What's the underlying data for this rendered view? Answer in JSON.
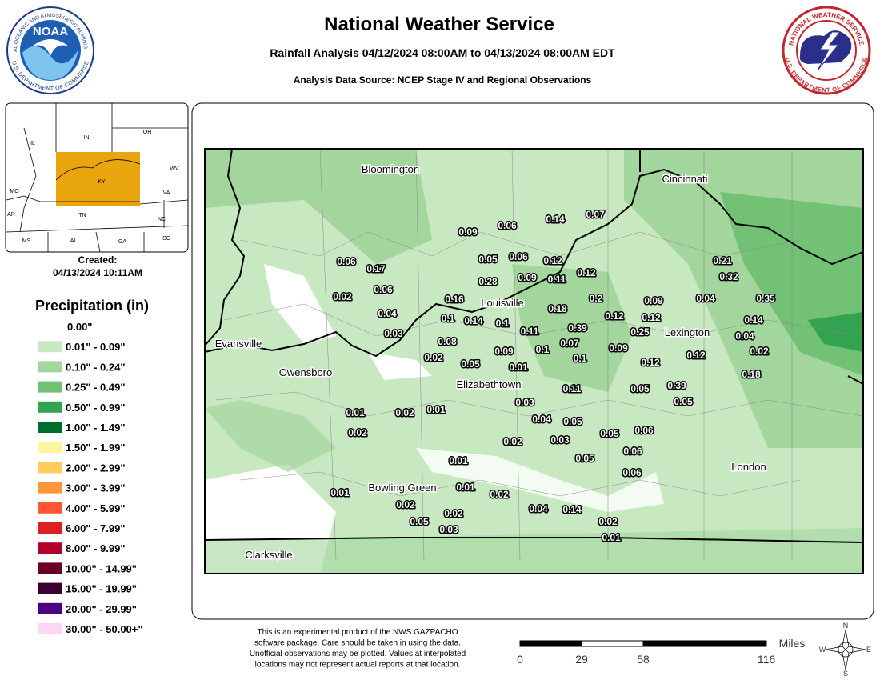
{
  "header": {
    "title": "National Weather Service",
    "subtitle": "Rainfall Analysis 04/12/2024 08:00AM to 04/13/2024 08:00AM EDT",
    "source": "Analysis Data Source: NCEP Stage IV and Regional Observations"
  },
  "logos": {
    "noaa": "NOAA",
    "noaa_ring_top": "NATIONAL OCEANIC AND ATMOSPHERIC ADMINISTRATION",
    "noaa_ring_bottom": "U.S. DEPARTMENT OF COMMERCE",
    "nws_ring_top": "NATIONAL WEATHER SERVICE",
    "nws_ring_bottom": "U.S. DEPARTMENT OF COMMERCE"
  },
  "inset": {
    "states": [
      "IL",
      "IN",
      "OH",
      "MO",
      "KY",
      "WV",
      "VA",
      "AR",
      "TN",
      "NC",
      "MS",
      "AL",
      "GA",
      "SC"
    ],
    "created_label": "Created:",
    "created": "04/13/2024 10:11AM"
  },
  "legend": {
    "title": "Precipitation (in)",
    "items": [
      {
        "label": "0.00\"",
        "color": "#ffffff"
      },
      {
        "label": "0.01\" - 0.09\"",
        "color": "#c8e8c2"
      },
      {
        "label": "0.10\" - 0.24\"",
        "color": "#a3d69c"
      },
      {
        "label": "0.25\" - 0.49\"",
        "color": "#72c174"
      },
      {
        "label": "0.50\" - 0.99\"",
        "color": "#32a350"
      },
      {
        "label": "1.00\" - 1.49\"",
        "color": "#006d2c"
      },
      {
        "label": "1.50\" - 1.99\"",
        "color": "#fff59a"
      },
      {
        "label": "2.00\" - 2.99\"",
        "color": "#ffcc5c"
      },
      {
        "label": "3.00\" - 3.99\"",
        "color": "#ff963c"
      },
      {
        "label": "4.00\" - 5.99\"",
        "color": "#ff5533"
      },
      {
        "label": "6.00\" - 7.99\"",
        "color": "#dd1f25"
      },
      {
        "label": "8.00\" - 9.99\"",
        "color": "#b2002b"
      },
      {
        "label": "10.00\" - 14.99\"",
        "color": "#6b0027"
      },
      {
        "label": "15.00\" - 19.99\"",
        "color": "#3b0033"
      },
      {
        "label": "20.00\" - 29.99\"",
        "color": "#4b0082"
      },
      {
        "label": "30.00\" - 50.00+\"",
        "color": "#ffd6f5"
      }
    ]
  },
  "map": {
    "cities": [
      "Bloomington",
      "Cincinnati",
      "Louisville",
      "Lexington",
      "Evansville",
      "Owensboro",
      "Elizabethtown",
      "Bowling Green",
      "London",
      "Clarksville"
    ],
    "observations": [
      "0.09",
      "0.06",
      "0.14",
      "0.07",
      "0.06",
      "0.17",
      "0.05",
      "0.06",
      "0.12",
      "0.12",
      "0.21",
      "0.32",
      "0.02",
      "0.06",
      "0.28",
      "0.09",
      "0.11",
      "0.16",
      "0.18",
      "0.2",
      "0.09",
      "0.04",
      "0.35",
      "0.04",
      "0.1",
      "0.14",
      "0.1",
      "0.12",
      "0.12",
      "0.14",
      "0.03",
      "0.08",
      "0.11",
      "0.39",
      "0.25",
      "0.04",
      "0.07",
      "0.09",
      "0.1",
      "0.09",
      "0.02",
      "0.02",
      "0.05",
      "0.1",
      "0.12",
      "0.12",
      "0.01",
      "0.18",
      "0.11",
      "0.05",
      "0.39",
      "0.05",
      "0.03",
      "0.01",
      "0.02",
      "0.01",
      "0.04",
      "0.05",
      "0.02",
      "0.02",
      "0.03",
      "0.05",
      "0.06",
      "0.06",
      "0.05",
      "0.01",
      "0.06",
      "0.01",
      "0.01",
      "0.02",
      "0.02",
      "0.04",
      "0.14",
      "0.02",
      "0.05",
      "0.02",
      "0.03",
      "0.01"
    ]
  },
  "footer": {
    "disclaimer": [
      "This is an experimental product of the NWS GAZPACHO",
      "software package. Care should be taken in using the data.",
      "Unofficial observations may be plotted. Values at interpolated",
      "locations may not represent actual reports at that location."
    ],
    "scale_unit": "Miles",
    "scale_ticks": [
      0,
      29,
      58,
      116
    ],
    "compass": [
      "N",
      "E",
      "S",
      "W"
    ]
  }
}
